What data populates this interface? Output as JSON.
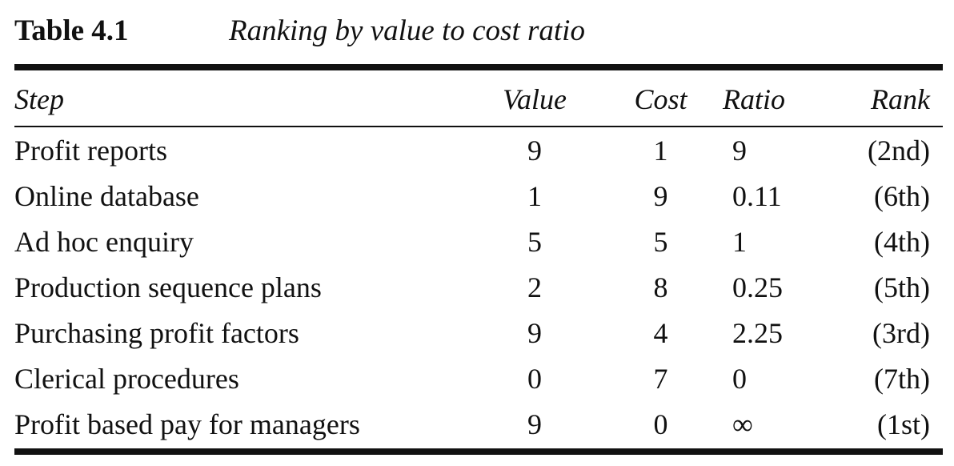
{
  "table": {
    "label": "Table 4.1",
    "title": "Ranking by value to cost ratio",
    "headers": {
      "step": "Step",
      "value": "Value",
      "cost": "Cost",
      "ratio": "Ratio",
      "rank": "Rank"
    },
    "rows": [
      {
        "step": "Profit reports",
        "value": "9",
        "cost": "1",
        "ratio": "9",
        "rank": "(2nd)"
      },
      {
        "step": "Online database",
        "value": "1",
        "cost": "9",
        "ratio": "0.11",
        "rank": "(6th)"
      },
      {
        "step": "Ad hoc enquiry",
        "value": "5",
        "cost": "5",
        "ratio": "1",
        "rank": "(4th)"
      },
      {
        "step": "Production sequence plans",
        "value": "2",
        "cost": "8",
        "ratio": "0.25",
        "rank": "(5th)"
      },
      {
        "step": "Purchasing profit factors",
        "value": "9",
        "cost": "4",
        "ratio": "2.25",
        "rank": "(3rd)"
      },
      {
        "step": "Clerical procedures",
        "value": "0",
        "cost": "7",
        "ratio": "0",
        "rank": "(7th)"
      },
      {
        "step": "Profit based pay for managers",
        "value": "9",
        "cost": "0",
        "ratio": "∞",
        "rank": "(1st)"
      }
    ]
  }
}
